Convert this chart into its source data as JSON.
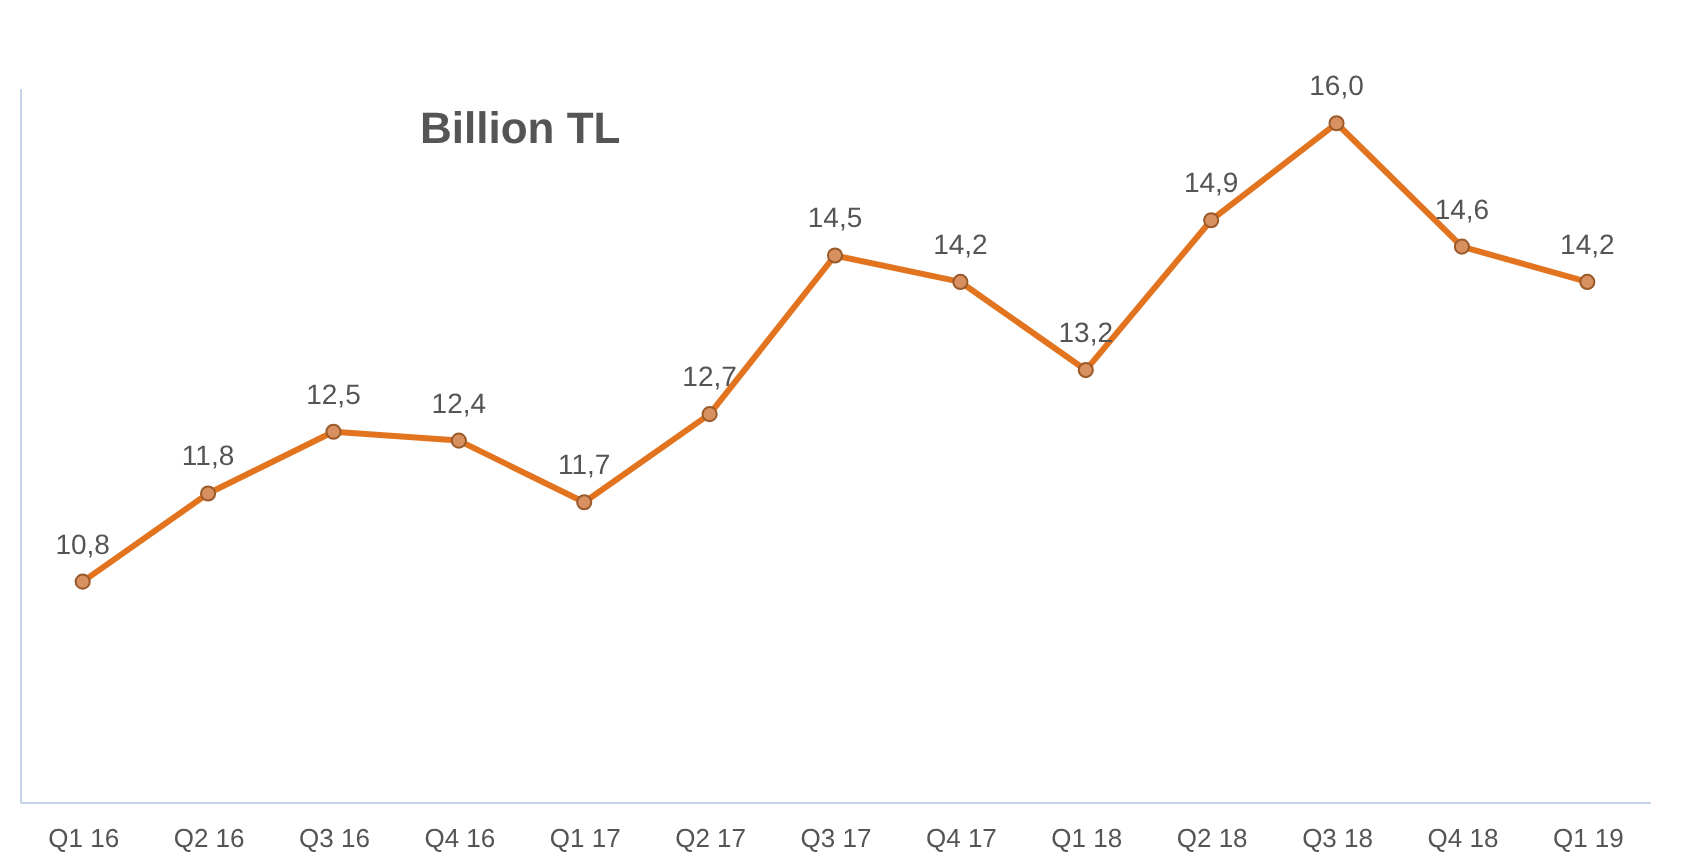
{
  "chart_data": {
    "type": "line",
    "title": "Billion TL",
    "categories": [
      "Q1 16",
      "Q2 16",
      "Q3 16",
      "Q4 16",
      "Q1 17",
      "Q2 17",
      "Q3 17",
      "Q4 17",
      "Q1 18",
      "Q2 18",
      "Q3 18",
      "Q4 18",
      "Q1 19"
    ],
    "series": [
      {
        "color": "#e2741f",
        "values": [
          10.8,
          11.8,
          12.5,
          12.4,
          11.7,
          12.7,
          14.5,
          14.2,
          13.2,
          14.9,
          16.0,
          14.6,
          14.2
        ],
        "value_labels": [
          "10,8",
          "11,8",
          "12,5",
          "12,4",
          "11,7",
          "12,7",
          "14,5",
          "14,2",
          "13,2",
          "14,9",
          "16,0",
          "14,6",
          "14,2"
        ]
      }
    ],
    "ylim": [
      8.3,
      16.4
    ],
    "marker": "circle",
    "grid": false,
    "tick_labels": "x"
  }
}
